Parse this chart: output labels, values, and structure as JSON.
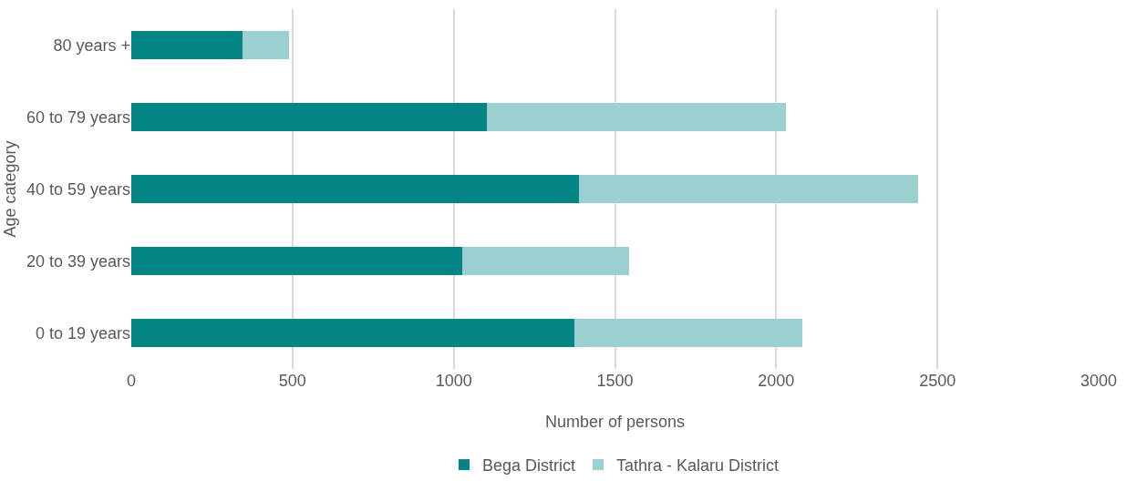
{
  "chart_data": {
    "type": "bar",
    "orientation": "horizontal",
    "stacked": true,
    "xlabel": "Number of persons",
    "ylabel": "Age category",
    "categories": [
      "80 years +",
      "60 to 79 years",
      "40 to 59 years",
      "20 to 39 years",
      "0 to 19 years"
    ],
    "series": [
      {
        "name": "Bega District",
        "color": "#038585",
        "values": [
          345,
          1104,
          1389,
          1026,
          1374
        ]
      },
      {
        "name": "Tathra - Kalaru District",
        "color": "#9ccfcf",
        "values": [
          144,
          927,
          1050,
          519,
          708
        ]
      }
    ],
    "xlim": [
      0,
      3000
    ],
    "xticks": [
      0,
      500,
      1000,
      1500,
      2000,
      2500,
      3000
    ],
    "grid": "x",
    "legend": "bottom"
  }
}
